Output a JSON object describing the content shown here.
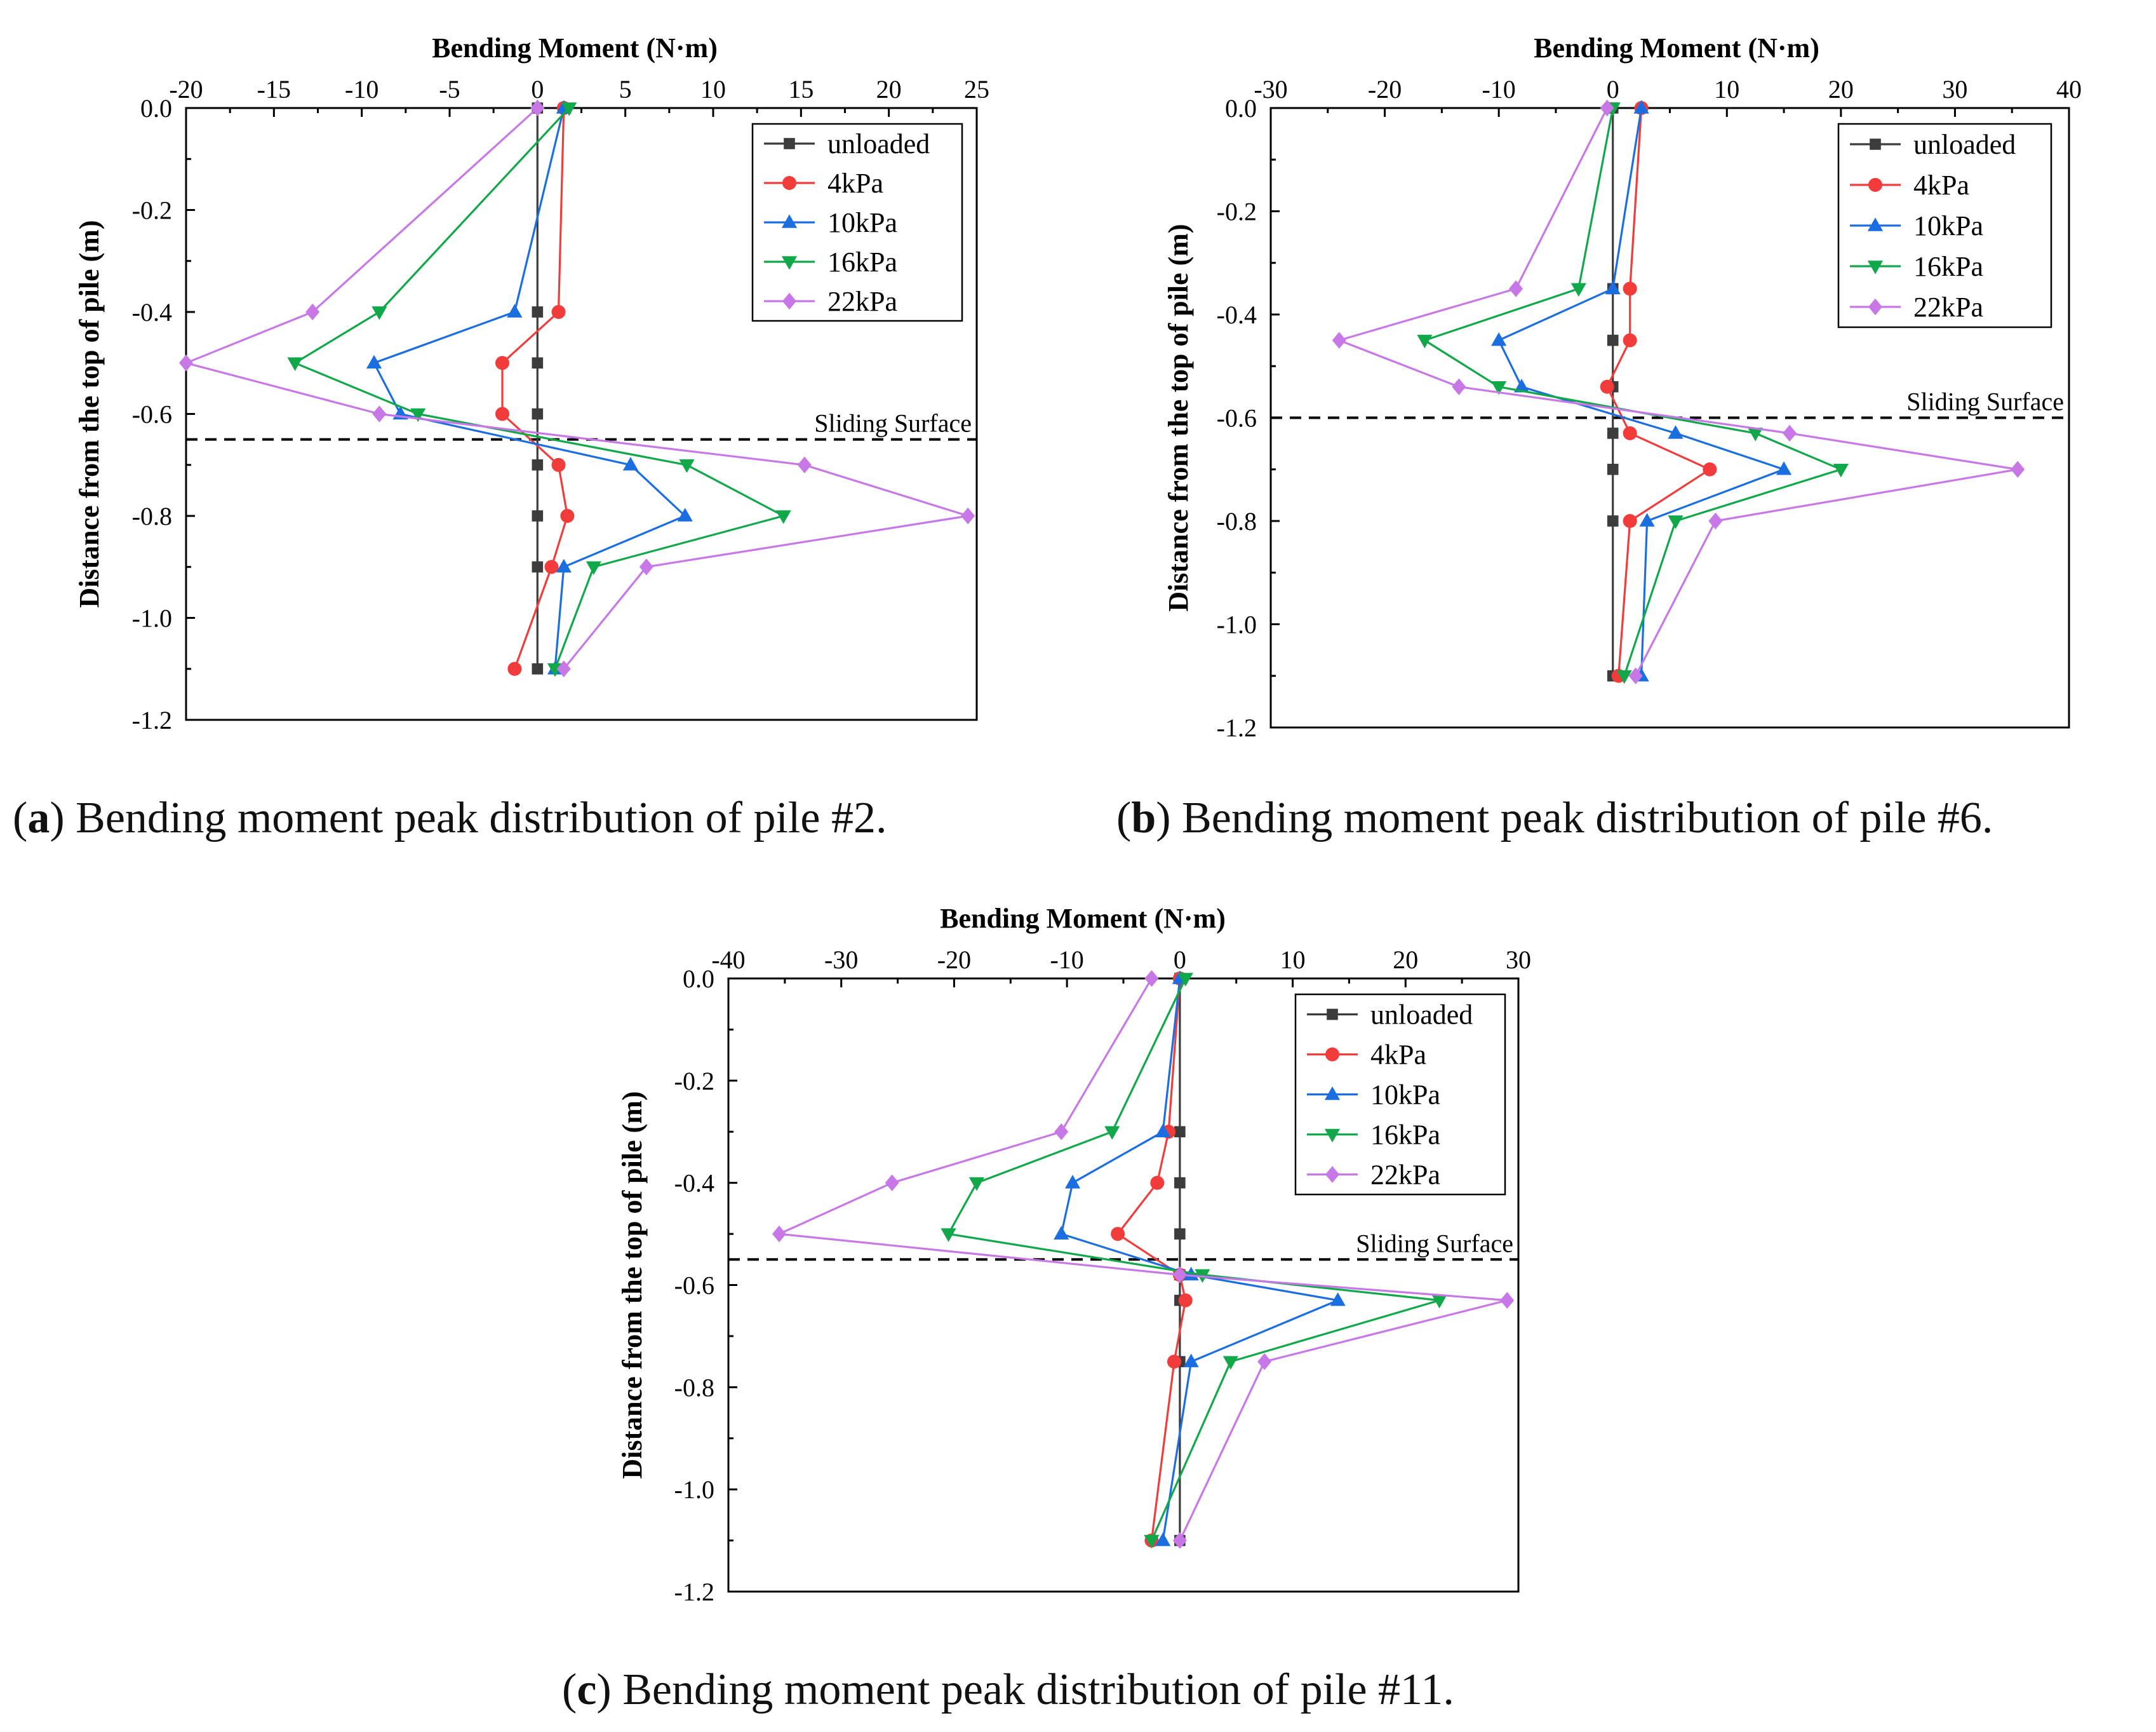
{
  "series_styles": [
    {
      "name": "unloaded",
      "color": "#3c3c3c",
      "marker": "square"
    },
    {
      "name": "4kPa",
      "color": "#f23c3c",
      "marker": "circle"
    },
    {
      "name": "10kPa",
      "color": "#1a6ee0",
      "marker": "triangle-up"
    },
    {
      "name": "16kPa",
      "color": "#11a84a",
      "marker": "triangle-down"
    },
    {
      "name": "22kPa",
      "color": "#c878e6",
      "marker": "diamond"
    }
  ],
  "chart_data": [
    {
      "type": "line",
      "title": "Bending Moment  (N·m)",
      "xlabel": "Bending Moment  (N·m)",
      "ylabel": "Distance from the top of pile  (m)",
      "xlim": [
        -20,
        25
      ],
      "xticks": [
        -20,
        -15,
        -10,
        -5,
        0,
        5,
        10,
        15,
        20,
        25
      ],
      "ylim": [
        -1.2,
        0.0
      ],
      "yticks": [
        0.0,
        -0.2,
        -0.4,
        -0.6,
        -0.8,
        -1.0,
        -1.2
      ],
      "ytick_labels": [
        "0.0",
        "-0.2",
        "-0.4",
        "-0.6",
        "-0.8",
        "-1.0",
        "-1.2"
      ],
      "legend_position": "top-right",
      "sliding_surface": {
        "depth": -0.65,
        "label": "Sliding Surface"
      },
      "series": [
        {
          "name": "unloaded",
          "points": [
            [
              0,
              0.0
            ],
            [
              0,
              -0.4
            ],
            [
              0,
              -0.5
            ],
            [
              0,
              -0.6
            ],
            [
              0,
              -0.7
            ],
            [
              0,
              -0.8
            ],
            [
              0,
              -0.9
            ],
            [
              0,
              -1.1
            ]
          ]
        },
        {
          "name": "4kPa",
          "points": [
            [
              1.5,
              0.0
            ],
            [
              1.2,
              -0.4
            ],
            [
              -2.0,
              -0.5
            ],
            [
              -2.0,
              -0.6
            ],
            [
              1.2,
              -0.7
            ],
            [
              1.7,
              -0.8
            ],
            [
              0.8,
              -0.9
            ],
            [
              -1.3,
              -1.1
            ]
          ]
        },
        {
          "name": "10kPa",
          "points": [
            [
              1.5,
              0.0
            ],
            [
              -1.3,
              -0.4
            ],
            [
              -9.3,
              -0.5
            ],
            [
              -7.8,
              -0.6
            ],
            [
              5.3,
              -0.7
            ],
            [
              8.4,
              -0.8
            ],
            [
              1.5,
              -0.9
            ],
            [
              1.0,
              -1.1
            ]
          ]
        },
        {
          "name": "16kPa",
          "points": [
            [
              1.8,
              0.0
            ],
            [
              -9.0,
              -0.4
            ],
            [
              -13.8,
              -0.5
            ],
            [
              -6.8,
              -0.6
            ],
            [
              8.5,
              -0.7
            ],
            [
              14.0,
              -0.8
            ],
            [
              3.2,
              -0.9
            ],
            [
              1.0,
              -1.1
            ]
          ]
        },
        {
          "name": "22kPa",
          "points": [
            [
              0,
              0.0
            ],
            [
              -12.8,
              -0.4
            ],
            [
              -20.0,
              -0.5
            ],
            [
              -9.0,
              -0.6
            ],
            [
              15.2,
              -0.7
            ],
            [
              24.5,
              -0.8
            ],
            [
              6.2,
              -0.9
            ],
            [
              1.5,
              -1.1
            ]
          ]
        }
      ]
    },
    {
      "type": "line",
      "title": "Bending Moment  (N·m)",
      "xlabel": "Bending Moment  (N·m)",
      "ylabel": "Distance from the top of pile  (m)",
      "xlim": [
        -30,
        40
      ],
      "xticks": [
        -30,
        -20,
        -10,
        0,
        10,
        20,
        30,
        40
      ],
      "ylim": [
        -1.2,
        0.0
      ],
      "yticks": [
        0.0,
        -0.2,
        -0.4,
        -0.6,
        -0.8,
        -1.0,
        -1.2
      ],
      "ytick_labels": [
        "0.0",
        "-0.2",
        "-0.4",
        "-0.6",
        "-0.8",
        "-1.0",
        "-1.2"
      ],
      "legend_position": "top-right",
      "sliding_surface": {
        "depth": -0.6,
        "label": "Sliding Surface"
      },
      "series": [
        {
          "name": "unloaded",
          "points": [
            [
              0,
              0.0
            ],
            [
              0,
              -0.35
            ],
            [
              0,
              -0.45
            ],
            [
              0,
              -0.54
            ],
            [
              0,
              -0.63
            ],
            [
              0,
              -0.7
            ],
            [
              0,
              -0.8
            ],
            [
              0,
              -1.1
            ]
          ]
        },
        {
          "name": "4kPa",
          "points": [
            [
              2.5,
              0.0
            ],
            [
              1.5,
              -0.35
            ],
            [
              1.5,
              -0.45
            ],
            [
              -0.5,
              -0.54
            ],
            [
              1.5,
              -0.63
            ],
            [
              8.5,
              -0.7
            ],
            [
              1.5,
              -0.8
            ],
            [
              0.5,
              -1.1
            ]
          ]
        },
        {
          "name": "10kPa",
          "points": [
            [
              2.5,
              0.0
            ],
            [
              0,
              -0.35
            ],
            [
              -10.0,
              -0.45
            ],
            [
              -8.0,
              -0.54
            ],
            [
              5.5,
              -0.63
            ],
            [
              15.0,
              -0.7
            ],
            [
              3.0,
              -0.8
            ],
            [
              2.5,
              -1.1
            ]
          ]
        },
        {
          "name": "16kPa",
          "points": [
            [
              0,
              0.0
            ],
            [
              -3.0,
              -0.35
            ],
            [
              -16.5,
              -0.45
            ],
            [
              -10.0,
              -0.54
            ],
            [
              12.5,
              -0.63
            ],
            [
              20.0,
              -0.7
            ],
            [
              5.5,
              -0.8
            ],
            [
              1.0,
              -1.1
            ]
          ]
        },
        {
          "name": "22kPa",
          "points": [
            [
              -0.5,
              0.0
            ],
            [
              -8.5,
              -0.35
            ],
            [
              -24.0,
              -0.45
            ],
            [
              -13.5,
              -0.54
            ],
            [
              15.5,
              -0.63
            ],
            [
              35.5,
              -0.7
            ],
            [
              9.0,
              -0.8
            ],
            [
              2.0,
              -1.1
            ]
          ]
        }
      ]
    },
    {
      "type": "line",
      "title": "Bending Moment  (N·m)",
      "xlabel": "Bending Moment  (N·m)",
      "ylabel": "Distance from the top of pile  (m)",
      "xlim": [
        -40,
        30
      ],
      "xticks": [
        -40,
        -30,
        -20,
        -10,
        0,
        10,
        20,
        30
      ],
      "ylim": [
        -1.2,
        0.0
      ],
      "yticks": [
        0.0,
        -0.2,
        -0.4,
        -0.6,
        -0.8,
        -1.0,
        -1.2
      ],
      "ytick_labels": [
        "0.0",
        "-0.2",
        "-0.4",
        "-0.6",
        "-0.8",
        "-1.0",
        "-1.2"
      ],
      "legend_position": "top-right",
      "sliding_surface": {
        "depth": -0.55,
        "label": "Sliding Surface"
      },
      "series": [
        {
          "name": "unloaded",
          "points": [
            [
              0,
              0.0
            ],
            [
              0,
              -0.3
            ],
            [
              0,
              -0.4
            ],
            [
              0,
              -0.5
            ],
            [
              0,
              -0.58
            ],
            [
              0,
              -0.63
            ],
            [
              0,
              -0.75
            ],
            [
              0,
              -1.1
            ]
          ]
        },
        {
          "name": "4kPa",
          "points": [
            [
              0,
              0.0
            ],
            [
              -1.0,
              -0.3
            ],
            [
              -2.0,
              -0.4
            ],
            [
              -5.5,
              -0.5
            ],
            [
              0,
              -0.58
            ],
            [
              0.5,
              -0.63
            ],
            [
              -0.5,
              -0.75
            ],
            [
              -2.5,
              -1.1
            ]
          ]
        },
        {
          "name": "10kPa",
          "points": [
            [
              0,
              0.0
            ],
            [
              -1.5,
              -0.3
            ],
            [
              -9.5,
              -0.4
            ],
            [
              -10.5,
              -0.5
            ],
            [
              1.0,
              -0.58
            ],
            [
              14.0,
              -0.63
            ],
            [
              1.0,
              -0.75
            ],
            [
              -1.5,
              -1.1
            ]
          ]
        },
        {
          "name": "16kPa",
          "points": [
            [
              0.5,
              0.0
            ],
            [
              -6.0,
              -0.3
            ],
            [
              -18.0,
              -0.4
            ],
            [
              -20.5,
              -0.5
            ],
            [
              2.0,
              -0.58
            ],
            [
              23.0,
              -0.63
            ],
            [
              4.5,
              -0.75
            ],
            [
              -2.5,
              -1.1
            ]
          ]
        },
        {
          "name": "22kPa",
          "points": [
            [
              -2.5,
              0.0
            ],
            [
              -10.5,
              -0.3
            ],
            [
              -25.5,
              -0.4
            ],
            [
              -35.5,
              -0.5
            ],
            [
              0,
              -0.58
            ],
            [
              29.0,
              -0.63
            ],
            [
              7.5,
              -0.75
            ],
            [
              0,
              -1.1
            ]
          ]
        }
      ]
    }
  ],
  "captions": [
    {
      "letter": "a",
      "text": " Bending moment peak distribution of pile #2."
    },
    {
      "letter": "b",
      "text": " Bending moment peak distribution of pile #6."
    },
    {
      "letter": "c",
      "text": " Bending moment peak distribution of pile #11."
    }
  ]
}
